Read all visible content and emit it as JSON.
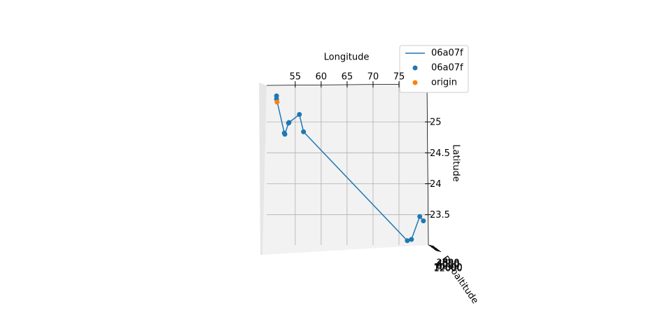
{
  "chart_data": {
    "type": "line3d",
    "xlabel": "Longitude",
    "ylabel": "Latitude",
    "zlabel": "Baroaltitude",
    "xlim": [
      49.5,
      80.4
    ],
    "ylim": [
      23.01,
      25.59
    ],
    "xticks": [
      55,
      60,
      65,
      70,
      75
    ],
    "yticks": [
      23.5,
      24.0,
      24.5,
      25.0
    ],
    "zticks": [
      2000,
      4000,
      6000,
      8000,
      10000,
      12000
    ],
    "grid": true,
    "legend": "upper right",
    "series": [
      {
        "name": "06a07f",
        "type": "line",
        "color": "#1f77b4",
        "x": [
          51.4,
          51.4,
          52.9,
          53.0,
          53.7,
          53.8,
          55.8,
          56.6,
          76.6,
          77.4,
          79.0,
          79.7
        ],
        "values": [
          25.42,
          25.37,
          24.82,
          24.8,
          24.98,
          24.99,
          25.12,
          24.84,
          23.08,
          23.1,
          23.47,
          23.4
        ]
      },
      {
        "name": "06a07f",
        "type": "scatter",
        "color": "#1f77b4",
        "x": [
          51.4,
          51.4,
          52.9,
          53.0,
          53.7,
          53.8,
          55.8,
          56.6,
          76.6,
          77.4,
          79.0,
          79.7
        ],
        "values": [
          25.42,
          25.37,
          24.82,
          24.8,
          24.98,
          24.99,
          25.12,
          24.84,
          23.08,
          23.1,
          23.47,
          23.4
        ]
      },
      {
        "name": "origin",
        "type": "scatter",
        "color": "#ff7f0e",
        "x": [
          51.5
        ],
        "values": [
          25.32
        ]
      }
    ]
  }
}
